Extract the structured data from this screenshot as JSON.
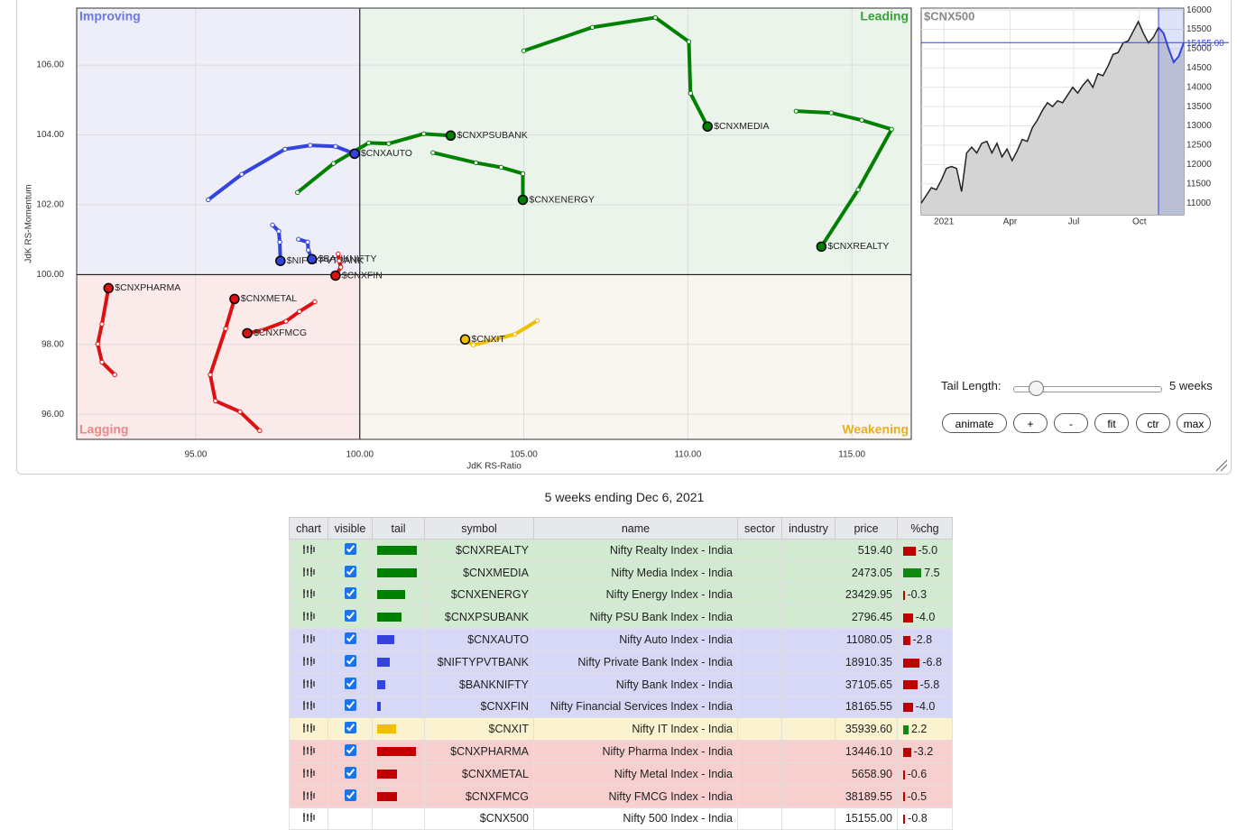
{
  "rrg": {
    "quadrants": [
      "Improving",
      "Leading",
      "Lagging",
      "Weakening"
    ],
    "x_label": "JdK RS-Ratio",
    "y_label": "JdK RS-Momentum",
    "xlim": [
      91.37,
      116.81
    ],
    "ylim": [
      95.28,
      107.63
    ],
    "xticks": [
      {
        "value": 95,
        "label": "95.00"
      },
      {
        "value": 100,
        "label": "100.00"
      },
      {
        "value": 105,
        "label": "105.00"
      },
      {
        "value": 110,
        "label": "110.00"
      },
      {
        "value": 115,
        "label": "115.00"
      }
    ],
    "yticks": [
      {
        "value": 96,
        "label": "96.00"
      },
      {
        "value": 98,
        "label": "98.00"
      },
      {
        "value": 100,
        "label": "100.00"
      },
      {
        "value": 102,
        "label": "102.00"
      },
      {
        "value": 104,
        "label": "104.00"
      },
      {
        "value": 106,
        "label": "106.00"
      }
    ],
    "grid": true,
    "series": [
      {
        "name": "$CNXREALTY",
        "color": "#008000",
        "x": [
          113.3,
          114.37,
          115.3,
          116.21,
          115.19,
          114.07
        ],
        "y": [
          104.68,
          104.63,
          104.42,
          104.16,
          102.43,
          100.8
        ]
      },
      {
        "name": "$CNXMEDIA",
        "color": "#008000",
        "x": [
          105.0,
          107.09,
          109.01,
          110.03,
          110.08,
          110.6
        ],
        "y": [
          106.41,
          107.08,
          107.36,
          106.67,
          105.19,
          104.24
        ]
      },
      {
        "name": "$CNXENERGY",
        "color": "#008000",
        "x": [
          102.23,
          103.54,
          104.31,
          104.97,
          104.97
        ],
        "y": [
          103.49,
          103.2,
          103.07,
          102.89,
          102.14
        ]
      },
      {
        "name": "$CNXPSUBANK",
        "color": "#008000",
        "x": [
          98.1,
          99.2,
          100.27,
          100.88,
          101.95,
          102.77
        ],
        "y": [
          102.35,
          103.18,
          103.77,
          103.75,
          104.03,
          103.98
        ]
      },
      {
        "name": "$CNXAUTO",
        "color": "#3344dd",
        "x": [
          95.38,
          96.4,
          97.72,
          98.49,
          99.26,
          99.84
        ],
        "y": [
          102.14,
          102.87,
          103.59,
          103.7,
          103.67,
          103.46
        ]
      },
      {
        "name": "$NIFTYPVTBANK",
        "color": "#3344dd",
        "x": [
          97.34,
          97.53,
          97.56,
          97.58
        ],
        "y": [
          101.42,
          101.24,
          100.93,
          100.39
        ]
      },
      {
        "name": "$BANKNIFTY",
        "color": "#3344dd",
        "x": [
          98.13,
          98.41,
          98.43,
          98.54
        ],
        "y": [
          101.01,
          100.93,
          100.7,
          100.44
        ]
      },
      {
        "name": "$CNXFIN",
        "color": "#dd1111",
        "x": [
          99.34,
          99.37,
          99.42,
          99.26
        ],
        "y": [
          100.59,
          100.39,
          100.21,
          99.97
        ]
      },
      {
        "name": "$CNXIT",
        "color": "#f0c000",
        "x": [
          105.41,
          104.73,
          104.09,
          103.46,
          103.21
        ],
        "y": [
          98.68,
          98.29,
          98.14,
          97.98,
          98.14
        ]
      },
      {
        "name": "$CNXPHARMA",
        "color": "#dd1111",
        "x": [
          92.53,
          92.14,
          92.01,
          92.14,
          92.34
        ],
        "y": [
          97.13,
          97.49,
          98.01,
          98.58,
          99.61
        ]
      },
      {
        "name": "$CNXMETAL",
        "color": "#dd1111",
        "x": [
          96.95,
          96.35,
          95.6,
          95.44,
          95.91,
          96.18
        ],
        "y": [
          95.53,
          96.07,
          96.38,
          97.13,
          98.45,
          99.3
        ]
      },
      {
        "name": "$CNXFMCG",
        "color": "#dd1111",
        "x": [
          98.63,
          98.16,
          97.75,
          97.01,
          96.57
        ],
        "y": [
          99.22,
          98.94,
          98.66,
          98.4,
          98.32
        ]
      }
    ]
  },
  "price_chart": {
    "title": "$CNX500",
    "xlim": [
      0,
      52
    ],
    "ylim": [
      10700,
      16050
    ],
    "xticks": [
      {
        "value": 4.5,
        "label": "2021"
      },
      {
        "value": 17.6,
        "label": "Apr"
      },
      {
        "value": 30.2,
        "label": "Jul"
      },
      {
        "value": 43.2,
        "label": "Oct"
      }
    ],
    "yticks": [
      11000,
      11500,
      12000,
      12500,
      13000,
      13500,
      14000,
      14500,
      15000,
      15500,
      16000
    ],
    "current": {
      "value": 15155,
      "label": "15155.00"
    },
    "values": [
      11000,
      11200,
      11400,
      11350,
      11600,
      11900,
      11950,
      11900,
      11300,
      12300,
      12450,
      12300,
      12550,
      12600,
      12300,
      12550,
      12200,
      12400,
      12100,
      12350,
      12650,
      12600,
      12950,
      13150,
      13400,
      13600,
      13500,
      13650,
      13600,
      13800,
      14000,
      13850,
      14050,
      14200,
      14000,
      14350,
      14300,
      14550,
      14850,
      14900,
      15150,
      15200,
      15450,
      15700,
      15400,
      15150,
      15300,
      15550,
      15400,
      15000,
      14650,
      14800,
      15155
    ]
  },
  "controls": {
    "tail_label": "Tail Length:",
    "tail_value": "5 weeks",
    "buttons": [
      "animate",
      "+",
      "-",
      "fit",
      "ctr",
      "max"
    ]
  },
  "caption": "5 weeks ending Dec 6, 2021",
  "table": {
    "headers": [
      "chart",
      "visible",
      "tail",
      "symbol",
      "name",
      "sector",
      "industry",
      "price",
      "%chg"
    ],
    "rows": [
      {
        "symbol": "$CNXREALTY",
        "name": "Nifty Realty Index - India",
        "price": "519.40",
        "chg": {
          "value": -5.0,
          "label": "-5.0"
        },
        "tail": 44,
        "visible": true,
        "color": "#d2ead2",
        "tail_color": "#008000"
      },
      {
        "symbol": "$CNXMEDIA",
        "name": "Nifty Media Index - India",
        "price": "2473.05",
        "chg": {
          "value": 7.5,
          "label": "7.5"
        },
        "tail": 44,
        "visible": true,
        "color": "#d2ead2",
        "tail_color": "#008000"
      },
      {
        "symbol": "$CNXENERGY",
        "name": "Nifty Energy Index - India",
        "price": "23429.95",
        "chg": {
          "value": -0.3,
          "label": "-0.3"
        },
        "tail": 31,
        "visible": true,
        "color": "#d2ead2",
        "tail_color": "#008000"
      },
      {
        "symbol": "$CNXPSUBANK",
        "name": "Nifty PSU Bank Index - India",
        "price": "2796.45",
        "chg": {
          "value": -4.0,
          "label": "-4.0"
        },
        "tail": 27,
        "visible": true,
        "color": "#d2ead2",
        "tail_color": "#008000"
      },
      {
        "symbol": "$CNXAUTO",
        "name": "Nifty Auto Index - India",
        "price": "11080.05",
        "chg": {
          "value": -2.8,
          "label": "-2.8"
        },
        "tail": 19,
        "visible": true,
        "color": "#d6d8f5",
        "tail_color": "#3344dd"
      },
      {
        "symbol": "$NIFTYPVTBANK",
        "name": "Nifty Private Bank Index - India",
        "price": "18910.35",
        "chg": {
          "value": -6.8,
          "label": "-6.8"
        },
        "tail": 14,
        "visible": true,
        "color": "#d6d8f5",
        "tail_color": "#3344dd"
      },
      {
        "symbol": "$BANKNIFTY",
        "name": "Nifty Bank Index - India",
        "price": "37105.65",
        "chg": {
          "value": -5.8,
          "label": "-5.8"
        },
        "tail": 9,
        "visible": true,
        "color": "#d6d8f5",
        "tail_color": "#3344dd"
      },
      {
        "symbol": "$CNXFIN",
        "name": "Nifty Financial Services Index - India",
        "price": "18165.55",
        "chg": {
          "value": -4.0,
          "label": "-4.0"
        },
        "tail": 4,
        "visible": true,
        "color": "#d6d8f5",
        "tail_color": "#3344dd"
      },
      {
        "symbol": "$CNXIT",
        "name": "Nifty IT Index - India",
        "price": "35939.60",
        "chg": {
          "value": 2.2,
          "label": "2.2"
        },
        "tail": 21,
        "visible": true,
        "color": "#fbf3cf",
        "tail_color": "#f0c000"
      },
      {
        "symbol": "$CNXPHARMA",
        "name": "Nifty Pharma Index - India",
        "price": "13446.10",
        "chg": {
          "value": -3.2,
          "label": "-3.2"
        },
        "tail": 43,
        "visible": true,
        "color": "#f8cfcf",
        "tail_color": "#c00000"
      },
      {
        "symbol": "$CNXMETAL",
        "name": "Nifty Metal Index - India",
        "price": "5658.90",
        "chg": {
          "value": -0.6,
          "label": "-0.6"
        },
        "tail": 22,
        "visible": true,
        "color": "#f8cfcf",
        "tail_color": "#c00000"
      },
      {
        "symbol": "$CNXFMCG",
        "name": "Nifty FMCG Index - India",
        "price": "38189.55",
        "chg": {
          "value": -0.5,
          "label": "-0.5"
        },
        "tail": 22,
        "visible": true,
        "color": "#f8cfcf",
        "tail_color": "#c00000"
      },
      {
        "symbol": "$CNX500",
        "name": "Nifty 500 Index - India",
        "price": "15155.00",
        "chg": {
          "value": -0.8,
          "label": "-0.8"
        },
        "tail": null,
        "visible": false,
        "color": "#ffffff",
        "tail_color": "#c00000"
      }
    ]
  }
}
